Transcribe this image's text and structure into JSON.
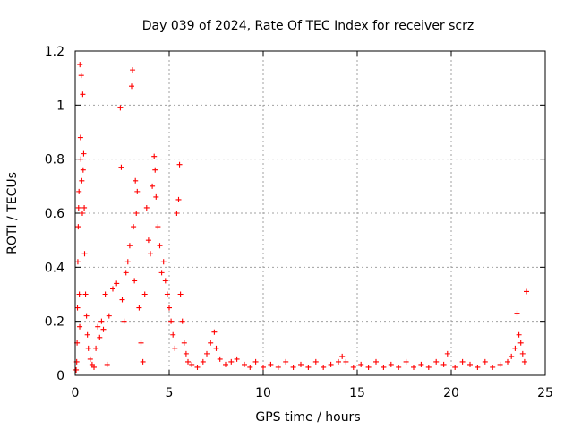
{
  "chart_data": {
    "type": "scatter",
    "title": "Day 039 of 2024, Rate Of TEC Index for receiver scrz",
    "xlabel": "GPS time / hours",
    "ylabel": "ROTI / TECUs",
    "xlim": [
      0,
      25
    ],
    "ylim": [
      0,
      1.2
    ],
    "x_ticks": [
      "0",
      "5",
      "10",
      "15",
      "20",
      "25"
    ],
    "y_ticks": [
      "0",
      "0.2",
      "0.4",
      "0.6",
      "0.8",
      "1",
      "1.2"
    ],
    "grid": true,
    "marker": "+",
    "color": "#ff0000",
    "series": [
      {
        "points": [
          [
            0.05,
            0.02
          ],
          [
            0.08,
            0.05
          ],
          [
            0.1,
            0.12
          ],
          [
            0.12,
            0.25
          ],
          [
            0.14,
            0.42
          ],
          [
            0.16,
            0.55
          ],
          [
            0.18,
            0.62
          ],
          [
            0.2,
            0.68
          ],
          [
            0.22,
            0.3
          ],
          [
            0.24,
            0.18
          ],
          [
            0.25,
            1.15
          ],
          [
            0.28,
            0.88
          ],
          [
            0.3,
            0.8
          ],
          [
            0.32,
            1.11
          ],
          [
            0.35,
            0.72
          ],
          [
            0.38,
            0.6
          ],
          [
            0.4,
            1.04
          ],
          [
            0.42,
            0.76
          ],
          [
            0.45,
            0.82
          ],
          [
            0.48,
            0.62
          ],
          [
            0.5,
            0.45
          ],
          [
            0.55,
            0.3
          ],
          [
            0.6,
            0.22
          ],
          [
            0.65,
            0.15
          ],
          [
            0.7,
            0.1
          ],
          [
            0.8,
            0.06
          ],
          [
            0.9,
            0.04
          ],
          [
            1.0,
            0.03
          ],
          [
            1.1,
            0.1
          ],
          [
            1.2,
            0.18
          ],
          [
            1.3,
            0.14
          ],
          [
            1.4,
            0.2
          ],
          [
            1.5,
            0.17
          ],
          [
            1.6,
            0.3
          ],
          [
            1.7,
            0.04
          ],
          [
            1.8,
            0.22
          ],
          [
            2.0,
            0.32
          ],
          [
            2.2,
            0.34
          ],
          [
            2.4,
            0.99
          ],
          [
            2.45,
            0.77
          ],
          [
            2.5,
            0.28
          ],
          [
            2.6,
            0.2
          ],
          [
            2.7,
            0.38
          ],
          [
            2.8,
            0.42
          ],
          [
            2.9,
            0.48
          ],
          [
            3.0,
            1.07
          ],
          [
            3.05,
            1.13
          ],
          [
            3.1,
            0.55
          ],
          [
            3.15,
            0.35
          ],
          [
            3.2,
            0.72
          ],
          [
            3.25,
            0.6
          ],
          [
            3.3,
            0.68
          ],
          [
            3.4,
            0.25
          ],
          [
            3.5,
            0.12
          ],
          [
            3.6,
            0.05
          ],
          [
            3.7,
            0.3
          ],
          [
            3.8,
            0.62
          ],
          [
            3.9,
            0.5
          ],
          [
            4.0,
            0.45
          ],
          [
            4.1,
            0.7
          ],
          [
            4.2,
            0.81
          ],
          [
            4.25,
            0.76
          ],
          [
            4.3,
            0.66
          ],
          [
            4.4,
            0.55
          ],
          [
            4.5,
            0.48
          ],
          [
            4.6,
            0.38
          ],
          [
            4.7,
            0.42
          ],
          [
            4.8,
            0.35
          ],
          [
            4.9,
            0.3
          ],
          [
            5.0,
            0.25
          ],
          [
            5.1,
            0.2
          ],
          [
            5.2,
            0.15
          ],
          [
            5.3,
            0.1
          ],
          [
            5.4,
            0.6
          ],
          [
            5.5,
            0.65
          ],
          [
            5.55,
            0.78
          ],
          [
            5.6,
            0.3
          ],
          [
            5.7,
            0.2
          ],
          [
            5.8,
            0.12
          ],
          [
            5.9,
            0.08
          ],
          [
            6.0,
            0.05
          ],
          [
            6.2,
            0.04
          ],
          [
            6.5,
            0.03
          ],
          [
            6.8,
            0.05
          ],
          [
            7.0,
            0.08
          ],
          [
            7.2,
            0.12
          ],
          [
            7.4,
            0.16
          ],
          [
            7.5,
            0.1
          ],
          [
            7.7,
            0.06
          ],
          [
            8.0,
            0.04
          ],
          [
            8.3,
            0.05
          ],
          [
            8.6,
            0.06
          ],
          [
            9.0,
            0.04
          ],
          [
            9.3,
            0.03
          ],
          [
            9.6,
            0.05
          ],
          [
            10.0,
            0.03
          ],
          [
            10.4,
            0.04
          ],
          [
            10.8,
            0.03
          ],
          [
            11.2,
            0.05
          ],
          [
            11.6,
            0.03
          ],
          [
            12.0,
            0.04
          ],
          [
            12.4,
            0.03
          ],
          [
            12.8,
            0.05
          ],
          [
            13.2,
            0.03
          ],
          [
            13.6,
            0.04
          ],
          [
            14.0,
            0.05
          ],
          [
            14.2,
            0.07
          ],
          [
            14.4,
            0.05
          ],
          [
            14.8,
            0.03
          ],
          [
            15.2,
            0.04
          ],
          [
            15.6,
            0.03
          ],
          [
            16.0,
            0.05
          ],
          [
            16.4,
            0.03
          ],
          [
            16.8,
            0.04
          ],
          [
            17.2,
            0.03
          ],
          [
            17.6,
            0.05
          ],
          [
            18.0,
            0.03
          ],
          [
            18.4,
            0.04
          ],
          [
            18.8,
            0.03
          ],
          [
            19.2,
            0.05
          ],
          [
            19.6,
            0.04
          ],
          [
            19.8,
            0.08
          ],
          [
            20.2,
            0.03
          ],
          [
            20.6,
            0.05
          ],
          [
            21.0,
            0.04
          ],
          [
            21.4,
            0.03
          ],
          [
            21.8,
            0.05
          ],
          [
            22.2,
            0.03
          ],
          [
            22.6,
            0.04
          ],
          [
            23.0,
            0.05
          ],
          [
            23.2,
            0.07
          ],
          [
            23.4,
            0.1
          ],
          [
            23.5,
            0.23
          ],
          [
            23.6,
            0.15
          ],
          [
            23.7,
            0.12
          ],
          [
            23.8,
            0.08
          ],
          [
            23.9,
            0.05
          ],
          [
            24.0,
            0.31
          ]
        ]
      }
    ]
  }
}
